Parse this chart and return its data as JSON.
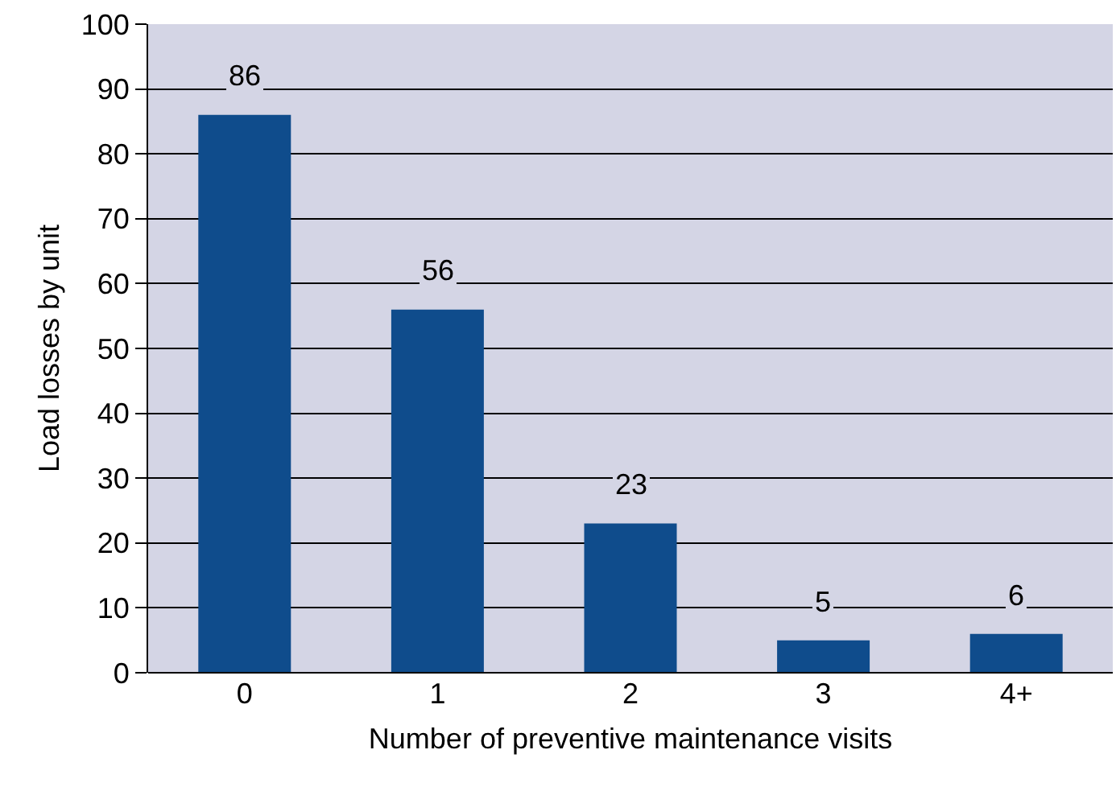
{
  "chart_data": {
    "type": "bar",
    "xlabel": "Number of preventive maintenance visits",
    "ylabel": "Load losses by unit",
    "categories": [
      "0",
      "1",
      "2",
      "3",
      "4+"
    ],
    "values": [
      86,
      56,
      23,
      5,
      6
    ],
    "color": "#0f4c8c",
    "ylim": [
      0,
      100
    ],
    "yticks": [
      0,
      10,
      20,
      30,
      40,
      50,
      60,
      70,
      80,
      90,
      100
    ],
    "grid": "y",
    "data_labels": true
  }
}
